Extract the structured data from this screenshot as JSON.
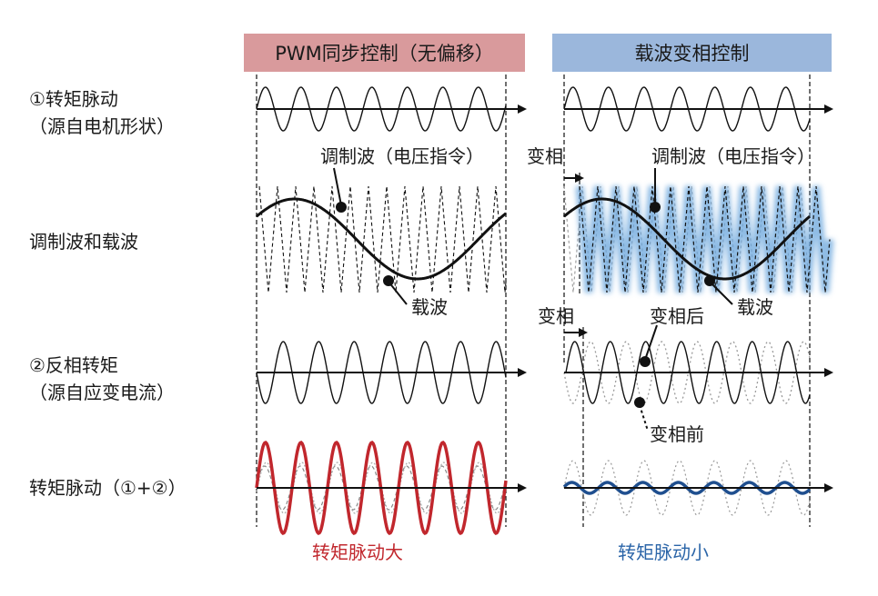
{
  "headers": {
    "left": "PWM同步控制（无偏移）",
    "right": "载波变相控制"
  },
  "rows": {
    "row1_line1": "①转矩脉动",
    "row1_line2": "（源自电机形状）",
    "row2": "调制波和载波",
    "row3_line1": "②反相转矩",
    "row3_line2": "（源自应变电流）",
    "row4": "转矩脉动（①+②）"
  },
  "annotations": {
    "modulation_left": "调制波（电压指令）",
    "modulation_right": "调制波（电压指令）",
    "carrier_left": "载波",
    "carrier_right": "载波",
    "phase_shift_1": "变相",
    "phase_shift_2": "变相",
    "after_shift": "变相后",
    "before_shift": "变相前"
  },
  "results": {
    "left": "转矩脉动大",
    "right": "转矩脉动小"
  },
  "colors": {
    "left_header": "#d99a9c",
    "right_header": "#9bb7dc",
    "ripple_large": "#c1272d",
    "ripple_small": "#1f4f8f",
    "carrier_glow": "#6aa5dc"
  }
}
